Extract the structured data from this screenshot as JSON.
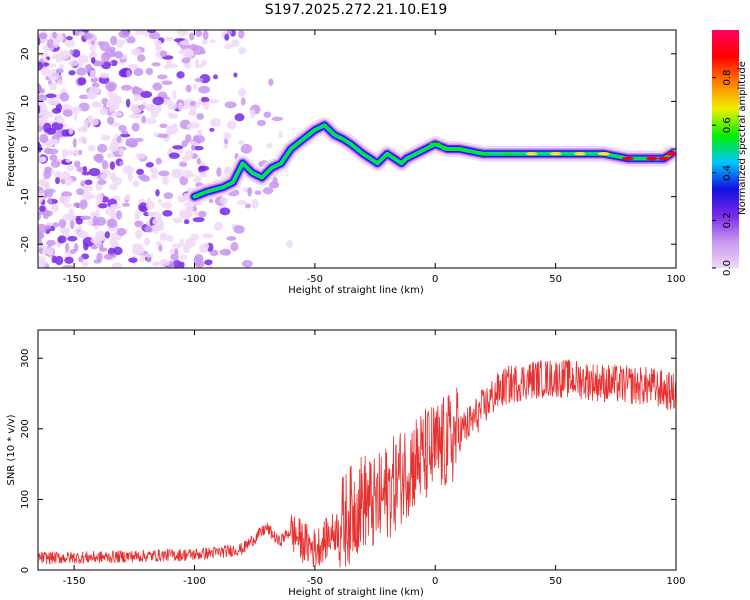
{
  "title": "S197.2025.272.21.10.E19",
  "chart_data": [
    {
      "type": "heatmap",
      "name": "spectrogram",
      "xlabel": "Height of straight line (km)",
      "ylabel": "Frequency (Hz)",
      "xlim": [
        -165,
        100
      ],
      "ylim": [
        -25,
        25
      ],
      "xticks": [
        -150,
        -100,
        -50,
        0,
        50,
        100
      ],
      "yticks": [
        -20,
        -10,
        0,
        10,
        20
      ],
      "ridge": {
        "x": [
          -100,
          -95,
          -88,
          -84,
          -80,
          -76,
          -72,
          -68,
          -64,
          -60,
          -55,
          -50,
          -46,
          -42,
          -38,
          -35,
          -30,
          -27,
          -24,
          -20,
          -17,
          -14,
          -12,
          -8,
          -4,
          0,
          5,
          10,
          20,
          30,
          40,
          50,
          60,
          70,
          80,
          90,
          95,
          98
        ],
        "y": [
          -10,
          -9,
          -8,
          -7,
          -3,
          -5,
          -6,
          -4,
          -3,
          0,
          2,
          4,
          5,
          3,
          2,
          1,
          -1,
          -2,
          -3,
          -1,
          -2,
          -3,
          -2,
          -1,
          0,
          1,
          0,
          0,
          -1,
          -1,
          -1,
          -1,
          -1,
          -1,
          -2,
          -2,
          -2,
          -1
        ]
      },
      "colorbar": {
        "label": "Normalized spectral amplitude",
        "ticks": [
          0.0,
          0.2,
          0.4,
          0.6,
          0.8
        ],
        "tick_labels": [
          "0.0",
          "0.2",
          "0.4",
          "0.6",
          "0.8"
        ],
        "range": [
          0,
          1
        ]
      },
      "colors": [
        "#f0d8f8",
        "#c896f0",
        "#7828e8",
        "#1010e0",
        "#00c8ff",
        "#00f000",
        "#f0f000",
        "#ff8000",
        "#ff0000",
        "#ff0060"
      ]
    },
    {
      "type": "line",
      "name": "snr",
      "xlabel": "Height of straight line (km)",
      "ylabel": "SNR (10 * v/v)",
      "xlim": [
        -165,
        100
      ],
      "ylim": [
        0,
        340
      ],
      "xticks": [
        -150,
        -100,
        -50,
        0,
        50,
        100
      ],
      "yticks": [
        0,
        100,
        200,
        300
      ],
      "color": "#e83030",
      "series": [
        {
          "name": "SNR",
          "x": [
            -165,
            -140,
            -120,
            -100,
            -90,
            -80,
            -75,
            -70,
            -65,
            -60,
            -55,
            -50,
            -45,
            -40,
            -35,
            -30,
            -25,
            -20,
            -15,
            -10,
            -5,
            0,
            5,
            10,
            15,
            20,
            25,
            30,
            40,
            50,
            60,
            70,
            80,
            90,
            95,
            100
          ],
          "values": [
            17,
            18,
            20,
            22,
            25,
            30,
            45,
            60,
            40,
            55,
            40,
            30,
            45,
            60,
            80,
            100,
            90,
            110,
            130,
            150,
            160,
            170,
            180,
            195,
            210,
            230,
            250,
            262,
            270,
            272,
            270,
            265,
            262,
            260,
            255,
            250
          ]
        }
      ]
    }
  ]
}
